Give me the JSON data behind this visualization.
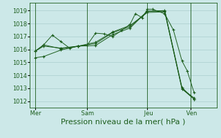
{
  "bg_color": "#cce8e8",
  "grid_color": "#aacece",
  "line_color": "#1a5c1a",
  "marker_color": "#1a5c1a",
  "xlabel": "Pression niveau de la mer( hPa )",
  "xlabel_fontsize": 8,
  "ylim": [
    1011.5,
    1019.6
  ],
  "yticks": [
    1012,
    1013,
    1014,
    1015,
    1016,
    1017,
    1018,
    1019
  ],
  "ytick_fontsize": 6,
  "xtick_labels": [
    " Mer",
    " Sam",
    " Jeu",
    " Ven"
  ],
  "xtick_positions": [
    0,
    3,
    6.5,
    9
  ],
  "xlim": [
    -0.3,
    10.5
  ],
  "series": [
    {
      "x": [
        0.0,
        0.5,
        1.0,
        1.5,
        2.0,
        2.5,
        3.0,
        3.5,
        4.0,
        4.5,
        5.0,
        5.5,
        5.8,
        6.2,
        6.5,
        6.8,
        7.5,
        8.0,
        8.5,
        8.8,
        9.2
      ],
      "y": [
        1015.85,
        1016.35,
        1017.1,
        1016.6,
        1016.1,
        1016.25,
        1016.3,
        1017.25,
        1017.2,
        1017.0,
        1017.45,
        1017.95,
        1018.75,
        1018.45,
        1019.1,
        1019.1,
        1018.75,
        1017.5,
        1015.1,
        1014.35,
        1012.65
      ]
    },
    {
      "x": [
        0.0,
        0.5,
        1.5,
        2.5,
        3.5,
        4.5,
        5.5,
        6.5,
        7.5,
        8.5,
        9.2
      ],
      "y": [
        1015.35,
        1015.45,
        1015.95,
        1016.25,
        1016.3,
        1017.15,
        1017.65,
        1018.95,
        1019.0,
        1013.05,
        1012.15
      ]
    },
    {
      "x": [
        0.0,
        0.5,
        1.5,
        2.5,
        3.5,
        4.5,
        5.5,
        6.5,
        7.5,
        8.5,
        9.2
      ],
      "y": [
        1015.85,
        1016.25,
        1016.1,
        1016.25,
        1016.45,
        1017.3,
        1017.75,
        1018.95,
        1018.95,
        1012.95,
        1012.15
      ]
    },
    {
      "x": [
        0.0,
        0.5,
        1.5,
        2.5,
        3.5,
        4.5,
        5.5,
        6.5,
        7.5,
        8.5,
        9.2
      ],
      "y": [
        1015.85,
        1016.35,
        1016.05,
        1016.25,
        1016.55,
        1017.35,
        1017.85,
        1018.85,
        1018.9,
        1012.95,
        1012.25
      ]
    }
  ],
  "vlines": [
    0,
    3,
    6.5,
    9
  ]
}
